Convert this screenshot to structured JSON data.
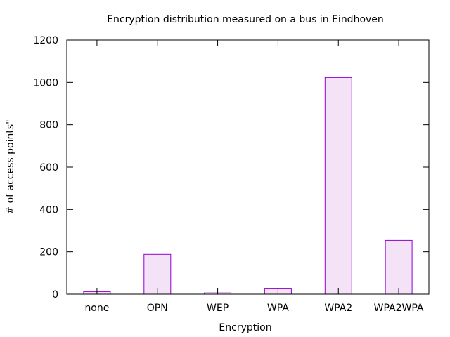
{
  "chart_data": {
    "type": "bar",
    "title": "Encryption distribution measured on a bus in Eindhoven",
    "xlabel": "Encryption",
    "ylabel": "# of access points\"",
    "categories": [
      "none",
      "OPN",
      "WEP",
      "WPA",
      "WPA2",
      "WPA2WPA"
    ],
    "values": [
      12,
      188,
      6,
      28,
      1023,
      254
    ],
    "ylim": [
      0,
      1200
    ],
    "yticks": [
      0,
      200,
      400,
      600,
      800,
      1000,
      1200
    ],
    "grid": false,
    "bar_fill": "#f4e2f7",
    "bar_stroke": "#9400d3"
  }
}
